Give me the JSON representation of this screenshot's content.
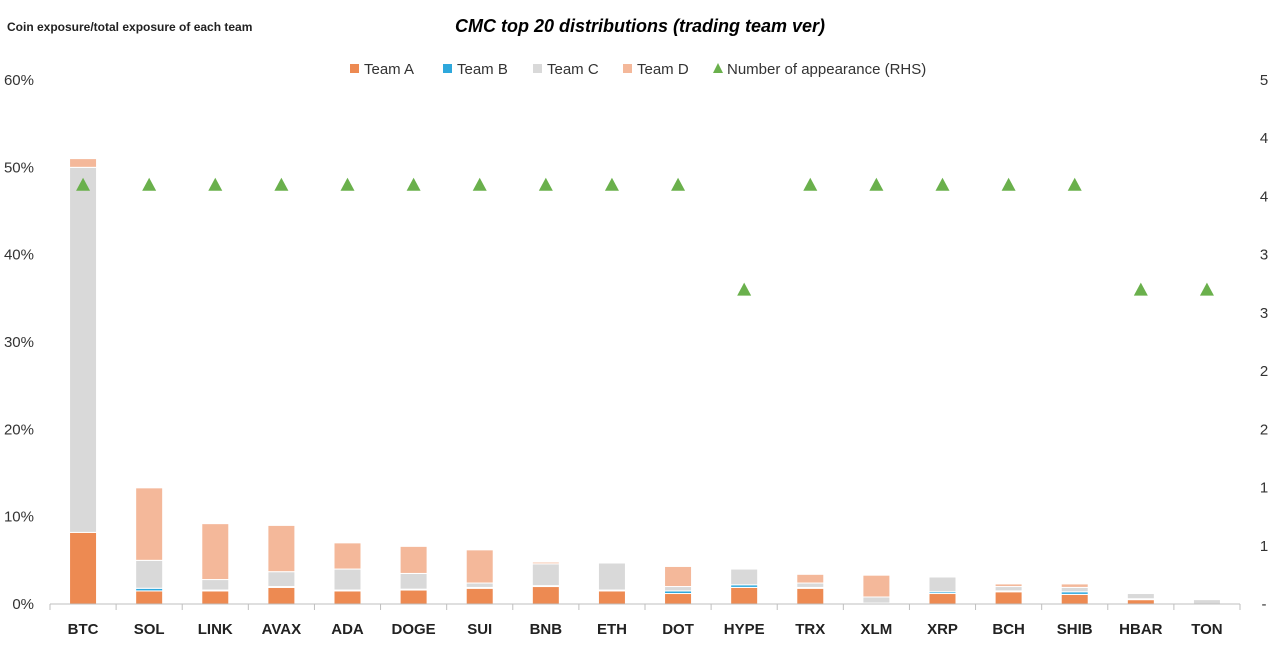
{
  "chart_data": {
    "type": "bar",
    "stacked": true,
    "title": "CMC top 20 distributions (trading team ver)",
    "ylabel": "Coin exposure/total exposure of each team",
    "y2label": "",
    "ylim": [
      0,
      60
    ],
    "y2lim": [
      0,
      5
    ],
    "yticks": [
      "0%",
      "10%",
      "20%",
      "30%",
      "40%",
      "50%",
      "60%"
    ],
    "y2ticks": [
      "-",
      "1",
      "1",
      "2",
      "2",
      "3",
      "3",
      "4",
      "4",
      "5"
    ],
    "categories": [
      "BTC",
      "SOL",
      "LINK",
      "AVAX",
      "ADA",
      "DOGE",
      "SUI",
      "BNB",
      "ETH",
      "DOT",
      "HYPE",
      "TRX",
      "XLM",
      "XRP",
      "BCH",
      "SHIB",
      "HBAR",
      "TON"
    ],
    "series": [
      {
        "name": "Team A",
        "color": "#ED8A52",
        "values": [
          8.2,
          1.5,
          1.5,
          1.9,
          1.5,
          1.6,
          1.8,
          2.0,
          1.5,
          1.2,
          1.9,
          1.8,
          0.0,
          1.2,
          1.4,
          1.1,
          0.5,
          0.0
        ]
      },
      {
        "name": "Team B",
        "color": "#2EA8DC",
        "values": [
          0.0,
          0.3,
          0.1,
          0.1,
          0.1,
          0.1,
          0.1,
          0.1,
          0.1,
          0.3,
          0.3,
          0.1,
          0.1,
          0.2,
          0.1,
          0.3,
          0.1,
          0.0
        ]
      },
      {
        "name": "Team C",
        "color": "#D9D9D9",
        "values": [
          41.8,
          3.2,
          1.2,
          1.7,
          2.4,
          1.8,
          0.5,
          2.5,
          3.1,
          0.5,
          1.8,
          0.5,
          0.7,
          1.7,
          0.5,
          0.5,
          0.6,
          0.5
        ]
      },
      {
        "name": "Team D",
        "color": "#F4B89A",
        "values": [
          1.0,
          8.3,
          6.4,
          5.3,
          3.0,
          3.1,
          3.8,
          0.2,
          0.1,
          2.3,
          0.0,
          1.0,
          2.5,
          0.1,
          0.3,
          0.4,
          0.1,
          0.0
        ]
      },
      {
        "name": "Number of appearance (RHS)",
        "color": "#6AB04C",
        "type": "marker",
        "axis": "right",
        "values": [
          4,
          4,
          4,
          4,
          4,
          4,
          4,
          4,
          4,
          4,
          3,
          4,
          4,
          4,
          4,
          4,
          3,
          3
        ]
      }
    ],
    "grid": false,
    "legend_position": "top-center"
  }
}
